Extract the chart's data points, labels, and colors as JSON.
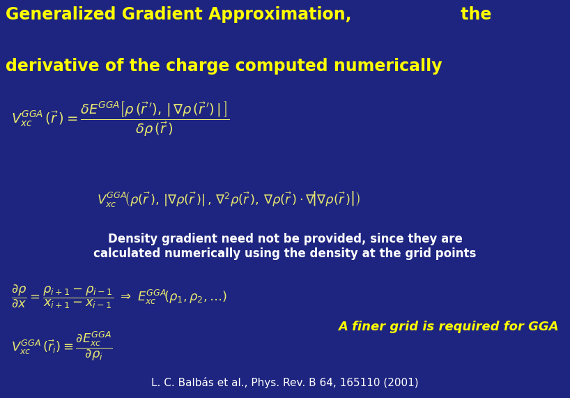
{
  "background_color": "#1e2580",
  "title_line1": "Generalized Gradient Approximation,                   the",
  "title_line2": "derivative of the charge computed numerically",
  "title_color": "#ffff00",
  "title_fontsize": 17,
  "eq_color": "#e8e870",
  "density_text": "Density gradient need not be provided, since they are\ncalculated numerically using the density at the grid points",
  "density_color": "#ffffff",
  "density_fontsize": 12,
  "finer_grid_text": "A finer grid is required for GGA",
  "finer_grid_color": "#ffff00",
  "finer_grid_fontsize": 13,
  "citation": "L. C. Balbás et al., Phys. Rev. B 64, 165110 (2001)",
  "citation_color": "#ffffff",
  "citation_fontsize": 11
}
